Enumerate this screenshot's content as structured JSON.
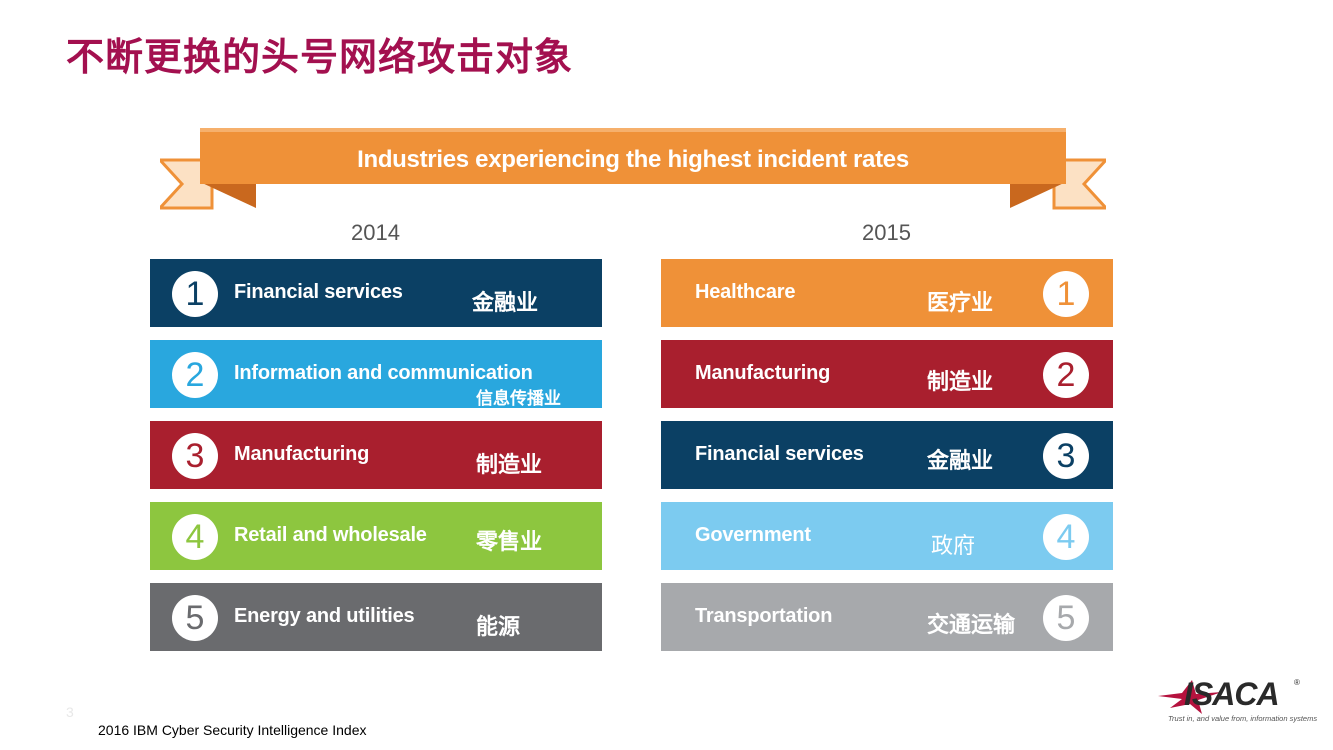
{
  "title": "不断更换的头号网络攻击对象",
  "banner": {
    "text": "Industries experiencing the highest incident rates"
  },
  "colors": {
    "title": "#a3104f",
    "banner": "#ef9138",
    "dark_blue": "#0b4064",
    "light_blue": "#29a7de",
    "red": "#a91f2e",
    "green": "#8dc63f",
    "dark_gray": "#6a6b6e",
    "orange": "#ef9138",
    "pale_blue": "#7ccbf0",
    "light_gray": "#a7a9ac"
  },
  "years": {
    "left": "2014",
    "right": "2015"
  },
  "list_2014": [
    {
      "rank": "1",
      "en": "Financial services",
      "zh": "金融业",
      "color": "#0b4064"
    },
    {
      "rank": "2",
      "en": "Information and communication",
      "zh": "信息传播业",
      "color": "#29a7de"
    },
    {
      "rank": "3",
      "en": "Manufacturing",
      "zh": "制造业",
      "color": "#a91f2e"
    },
    {
      "rank": "4",
      "en": "Retail and wholesale",
      "zh": "零售业",
      "color": "#8dc63f"
    },
    {
      "rank": "5",
      "en": "Energy and utilities",
      "zh": "能源",
      "color": "#6a6b6e"
    }
  ],
  "list_2015": [
    {
      "rank": "1",
      "en": "Healthcare",
      "zh": "医疗业",
      "color": "#ef9138"
    },
    {
      "rank": "2",
      "en": "Manufacturing",
      "zh": "制造业",
      "color": "#a91f2e"
    },
    {
      "rank": "3",
      "en": "Financial services",
      "zh": "金融业",
      "color": "#0b4064"
    },
    {
      "rank": "4",
      "en": "Government",
      "zh": "政府",
      "color": "#7ccbf0"
    },
    {
      "rank": "5",
      "en": "Transportation",
      "zh": "交通运输",
      "color": "#a7a9ac"
    }
  ],
  "page_number": "3",
  "footer": "2016 IBM Cyber Security Intelligence Index",
  "logo": {
    "name": "ISACA",
    "registered": "®",
    "tagline": "Trust in, and value from, information systems",
    "icon": "isaca-star-icon"
  }
}
